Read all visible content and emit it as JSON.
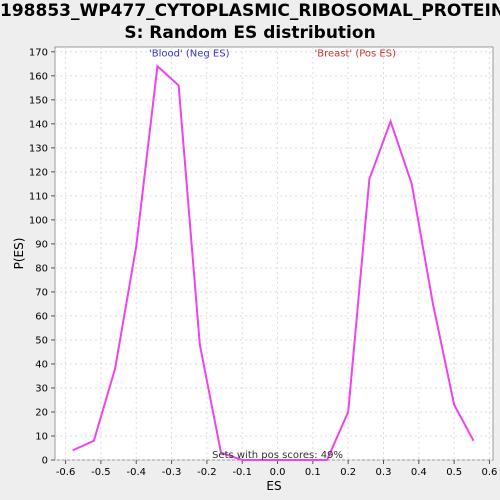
{
  "chart_data": {
    "type": "line",
    "title_line1": "198853_WP477_CYTOPLASMIC_RIBOSOMAL_PROTEIN",
    "title_line2": "S: Random ES distribution",
    "xlabel": "ES",
    "ylabel": "P(ES)",
    "xlim": [
      -0.63,
      0.61
    ],
    "ylim": [
      0,
      172
    ],
    "x_ticks": [
      "-0.6",
      "-0.5",
      "-0.4",
      "-0.3",
      "-0.2",
      "-0.1",
      "0.0",
      "0.1",
      "0.2",
      "0.3",
      "0.4",
      "0.5",
      "0.6"
    ],
    "x_tick_values": [
      -0.6,
      -0.5,
      -0.4,
      -0.3,
      -0.2,
      -0.1,
      0.0,
      0.1,
      0.2,
      0.3,
      0.4,
      0.5,
      0.6
    ],
    "y_ticks": [
      0,
      10,
      20,
      30,
      40,
      50,
      60,
      70,
      80,
      90,
      100,
      110,
      120,
      130,
      140,
      150,
      160,
      170
    ],
    "grid": true,
    "series": [
      {
        "color": "#ee44ee",
        "x": [
          -0.58,
          -0.52,
          -0.46,
          -0.4,
          -0.34,
          -0.28,
          -0.22,
          -0.16,
          -0.1,
          -0.04,
          0.02,
          0.08,
          0.14,
          0.2,
          0.26,
          0.32,
          0.38,
          0.44,
          0.5,
          0.555
        ],
        "y": [
          4,
          8,
          38,
          89,
          164,
          156,
          48,
          3,
          0,
          0,
          0,
          0,
          0,
          20,
          117,
          141,
          115,
          65,
          23,
          8
        ]
      }
    ],
    "annotations": {
      "neg": {
        "text": "'Blood' (Neg ES)",
        "color": "#3333cc"
      },
      "pos": {
        "text": "'Breast' (Pos ES)",
        "color": "#cc3333"
      },
      "bottom": {
        "text": "Sets with pos scores: 49%",
        "color": "#333333"
      }
    },
    "colors": {
      "background": "#eeeeee",
      "plot_bg": "#ffffff",
      "grid": "#dddddd",
      "line": "#ee44ee"
    }
  }
}
